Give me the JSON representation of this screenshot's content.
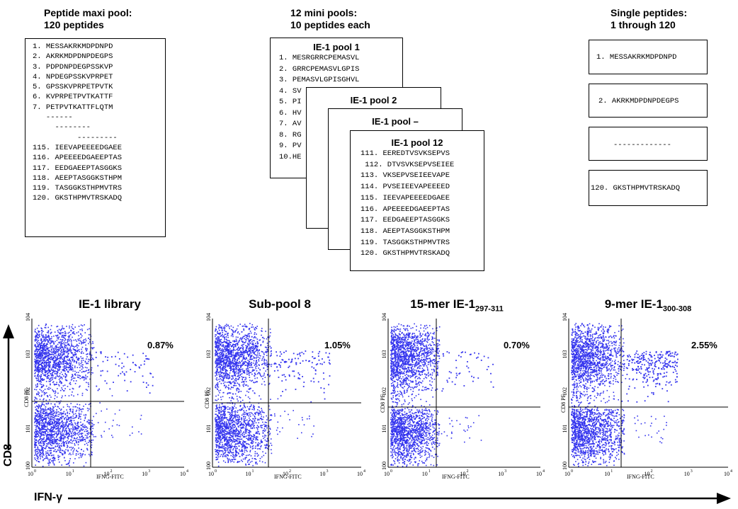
{
  "maxi_pool": {
    "title_line1": "Peptide maxi pool:",
    "title_line2": "120 peptides",
    "lines": [
      "1. MESSAKRKMDPDNPD",
      "2. AKRKMDPDNPDEGPS",
      "3. PDPDNPDEGPSSKVP",
      "4. NPDEGPSSKVPRPET",
      "5. GPSSKVPRPETPVTK",
      "6. KVPRPETPVTKATTF",
      "7. PETPVTKATTFLQTM",
      "   ------",
      "     --------",
      "          ---------",
      "115. IEEVAPEEEEDGAEE",
      "116. APEEEEDGAEEPTAS",
      "117. EEDGAEEPTASGGKS",
      "118. AEEPTASGGKSTHPM",
      "119. TASGGKSTHPMVTRS",
      "120. GKSTHPMVTRSKADQ"
    ]
  },
  "mini_pools": {
    "title_line1": "12 mini pools:",
    "title_line2": "10 peptides each",
    "pool1_title": "IE-1 pool 1",
    "pool1_lines": [
      "1. MESRGRRCPEMASVL",
      "2. GRRCPEMASVLGPIS",
      "3. PEMASVLGPISGHVL",
      "4. SV",
      "5. PI",
      "6. HV",
      "7. AV",
      "8. RG",
      "9. PV",
      "10.HE"
    ],
    "pool2_title": "IE-1 pool 2",
    "pooldash_title": "IE-1 pool –",
    "pool12_title": "IE-1 pool 12",
    "pool12_lines": [
      "111. EEREDTVSVKSEPVS",
      " 112. DTVSVKSEPVSEIEE",
      "113. VKSEPVSEIEEVAPE",
      "114. PVSEIEEVAPEEEED",
      "115. IEEVAPEEEEDGAEE",
      "116. APEEEEDGAEEPTAS",
      "117. EEDGAEEPTASGGKS",
      "118. AEEPTASGGKSTHPM",
      "119. TASGGKSTHPMVTRS",
      "120. GKSTHPMVTRSKADQ"
    ]
  },
  "single_peptides": {
    "title_line1": "Single peptides:",
    "title_line2": "1 through 120",
    "box1": "1. MESSAKRKMDPDNPD",
    "box2": "2. AKRKMDPDNPDEGPS",
    "box3": "-------------",
    "box4": "120. GKSTHPMVTRSKADQ"
  },
  "plots": [
    {
      "title": "IE-1 library",
      "percent": "0.87%"
    },
    {
      "title": "Sub-pool 8",
      "percent": "1.05%"
    },
    {
      "title_main": "15-mer IE-1",
      "title_sub": "297-311",
      "percent": "0.70%"
    },
    {
      "title_main": "9-mer IE-1",
      "title_sub": "300-308",
      "percent": "2.55%"
    }
  ],
  "axis": {
    "y_label": "CD8 PE",
    "x_label": "IFNG-FITC",
    "y_big": "CD8",
    "x_big": "IFN-γ",
    "tick_base": "10",
    "tick_exps": [
      "0",
      "1",
      "2",
      "3",
      "4"
    ]
  },
  "colors": {
    "dots": "#3333ee",
    "line": "#000000"
  }
}
